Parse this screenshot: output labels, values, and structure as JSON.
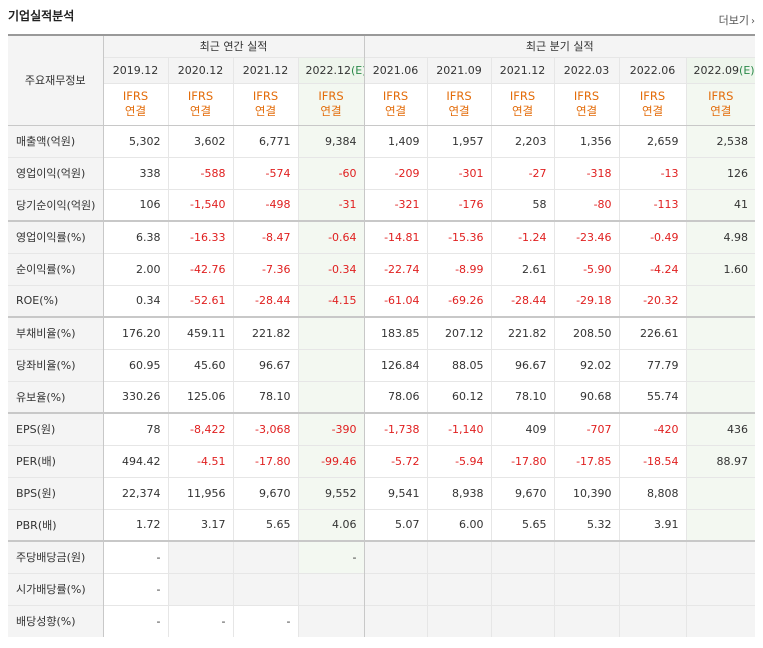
{
  "title": "기업실적분석",
  "more_label": "더보기",
  "row_header": "주요재무정보",
  "groups": {
    "annual": "최근 연간 실적",
    "quarterly": "최근 분기 실적"
  },
  "periods": [
    "2019.12",
    "2020.12",
    "2021.12",
    "2022.12",
    "2021.06",
    "2021.09",
    "2021.12",
    "2022.03",
    "2022.06",
    "2022.09"
  ],
  "estimate_suffix": "(E)",
  "ifrs_line1": "IFRS",
  "ifrs_line2": "연결",
  "rows": [
    {
      "label": "매출액(억원)",
      "values": [
        "5,302",
        "3,602",
        "6,771",
        "9,384",
        "1,409",
        "1,957",
        "2,203",
        "1,356",
        "2,659",
        "2,538"
      ]
    },
    {
      "label": "영업이익(억원)",
      "values": [
        "338",
        "-588",
        "-574",
        "-60",
        "-209",
        "-301",
        "-27",
        "-318",
        "-13",
        "126"
      ]
    },
    {
      "label": "당기순이익(억원)",
      "values": [
        "106",
        "-1,540",
        "-498",
        "-31",
        "-321",
        "-176",
        "58",
        "-80",
        "-113",
        "41"
      ]
    },
    {
      "label": "영업이익률(%)",
      "values": [
        "6.38",
        "-16.33",
        "-8.47",
        "-0.64",
        "-14.81",
        "-15.36",
        "-1.24",
        "-23.46",
        "-0.49",
        "4.98"
      ]
    },
    {
      "label": "순이익률(%)",
      "values": [
        "2.00",
        "-42.76",
        "-7.36",
        "-0.34",
        "-22.74",
        "-8.99",
        "2.61",
        "-5.90",
        "-4.24",
        "1.60"
      ]
    },
    {
      "label": "ROE(%)",
      "values": [
        "0.34",
        "-52.61",
        "-28.44",
        "-4.15",
        "-61.04",
        "-69.26",
        "-28.44",
        "-29.18",
        "-20.32",
        ""
      ]
    },
    {
      "label": "부채비율(%)",
      "values": [
        "176.20",
        "459.11",
        "221.82",
        "",
        "183.85",
        "207.12",
        "221.82",
        "208.50",
        "226.61",
        ""
      ]
    },
    {
      "label": "당좌비율(%)",
      "values": [
        "60.95",
        "45.60",
        "96.67",
        "",
        "126.84",
        "88.05",
        "96.67",
        "92.02",
        "77.79",
        ""
      ]
    },
    {
      "label": "유보율(%)",
      "values": [
        "330.26",
        "125.06",
        "78.10",
        "",
        "78.06",
        "60.12",
        "78.10",
        "90.68",
        "55.74",
        ""
      ]
    },
    {
      "label": "EPS(원)",
      "values": [
        "78",
        "-8,422",
        "-3,068",
        "-390",
        "-1,738",
        "-1,140",
        "409",
        "-707",
        "-420",
        "436"
      ]
    },
    {
      "label": "PER(배)",
      "values": [
        "494.42",
        "-4.51",
        "-17.80",
        "-99.46",
        "-5.72",
        "-5.94",
        "-17.80",
        "-17.85",
        "-18.54",
        "88.97"
      ]
    },
    {
      "label": "BPS(원)",
      "values": [
        "22,374",
        "11,956",
        "9,670",
        "9,552",
        "9,541",
        "8,938",
        "9,670",
        "10,390",
        "8,808",
        ""
      ]
    },
    {
      "label": "PBR(배)",
      "values": [
        "1.72",
        "3.17",
        "5.65",
        "4.06",
        "5.07",
        "6.00",
        "5.65",
        "5.32",
        "3.91",
        ""
      ]
    },
    {
      "label": "주당배당금(원)",
      "values": [
        "-",
        "",
        "",
        "-",
        "",
        "",
        "",
        "",
        "",
        ""
      ]
    },
    {
      "label": "시가배당률(%)",
      "values": [
        "-",
        "",
        "",
        "",
        "",
        "",
        "",
        "",
        "",
        ""
      ]
    },
    {
      "label": "배당성향(%)",
      "values": [
        "-",
        "-",
        "-",
        "",
        "",
        "",
        "",
        "",
        "",
        ""
      ]
    }
  ]
}
